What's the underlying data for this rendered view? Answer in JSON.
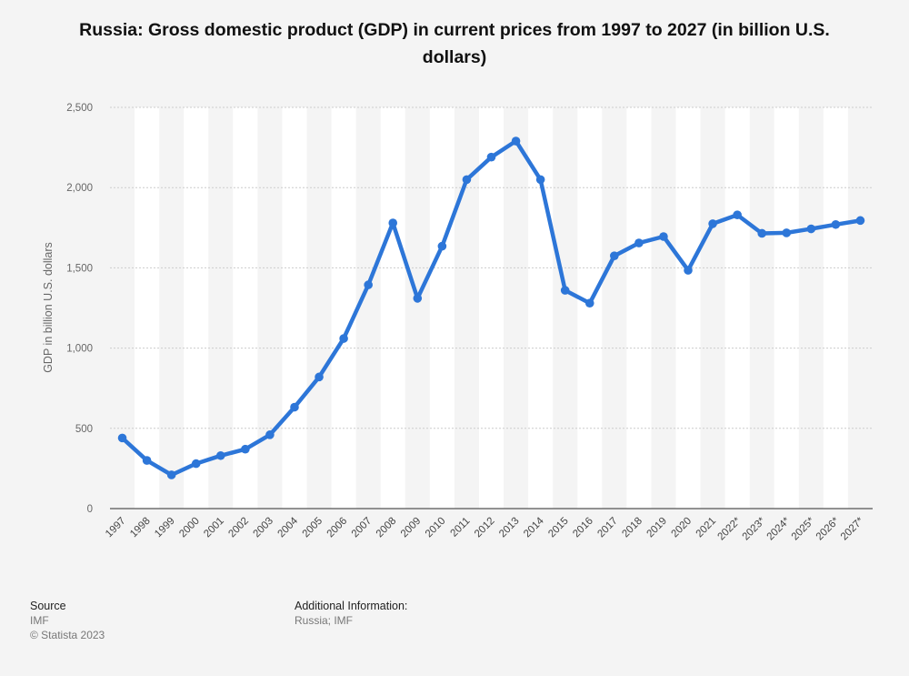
{
  "header": {
    "title": "Russia: Gross domestic product (GDP) in current prices from 1997 to 2027 (in billion U.S. dollars)"
  },
  "footer": {
    "source_heading": "Source",
    "source_value": "IMF",
    "copyright": "© Statista 2023",
    "info_heading": "Additional Information:",
    "info_value": "Russia; IMF"
  },
  "colors": {
    "line": "#2d76d8",
    "background": "#f4f4f4",
    "band": "#ffffff",
    "grid": "#cccccc",
    "axis": "#555555",
    "text": "#666666"
  },
  "chart_data": {
    "type": "line",
    "title": "Russia: Gross domestic product (GDP) in current prices from 1997 to 2027 (in billion U.S. dollars)",
    "xlabel": "",
    "ylabel": "GDP in billion U.S. dollars",
    "ylim": [
      0,
      2500
    ],
    "yticks": [
      0,
      500,
      1000,
      1500,
      2000,
      2500
    ],
    "ytick_labels": [
      "0",
      "500",
      "1,000",
      "1,500",
      "2,000",
      "2,500"
    ],
    "grid": true,
    "legend": "none",
    "categories": [
      "1997",
      "1998",
      "1999",
      "2000",
      "2001",
      "2002",
      "2003",
      "2004",
      "2005",
      "2006",
      "2007",
      "2008",
      "2009",
      "2010",
      "2011",
      "2012",
      "2013",
      "2014",
      "2015",
      "2016",
      "2017",
      "2018",
      "2019",
      "2020",
      "2021",
      "2022*",
      "2023*",
      "2024*",
      "2025*",
      "2026*",
      "2027*"
    ],
    "series": [
      {
        "values": [
          440,
          300,
          210,
          280,
          330,
          370,
          460,
          632,
          820,
          1060,
          1394,
          1780,
          1310,
          1635,
          2050,
          2190,
          2290,
          2050,
          1360,
          1280,
          1575,
          1655,
          1695,
          1485,
          1775,
          1830,
          1715,
          1718,
          1743,
          1770,
          1795
        ]
      }
    ]
  }
}
